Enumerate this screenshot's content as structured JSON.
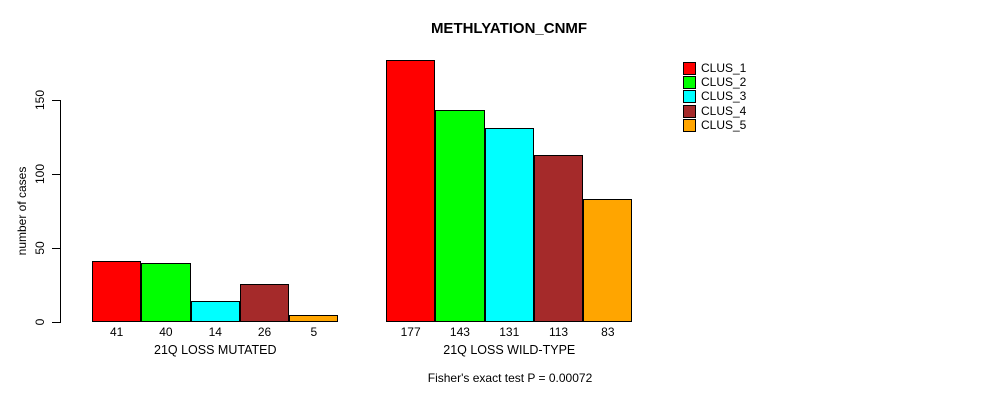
{
  "chart_data": {
    "type": "bar",
    "title": "METHLYATION_CNMF",
    "ylabel": "number of cases",
    "xlabel": "",
    "yticks": [
      0,
      50,
      100,
      150
    ],
    "ylim": [
      0,
      185
    ],
    "grid": false,
    "legend_position": "right",
    "categories": [
      "21Q LOSS MUTATED",
      "21Q LOSS WILD-TYPE"
    ],
    "series": [
      {
        "name": "CLUS_1",
        "color": "#FF0000",
        "values": [
          41,
          177
        ]
      },
      {
        "name": "CLUS_2",
        "color": "#00FF00",
        "values": [
          40,
          143
        ]
      },
      {
        "name": "CLUS_3",
        "color": "#00FFFF",
        "values": [
          14,
          131
        ]
      },
      {
        "name": "CLUS_4",
        "color": "#A52A2A",
        "values": [
          26,
          113
        ]
      },
      {
        "name": "CLUS_5",
        "color": "#FFA500",
        "values": [
          5,
          83
        ]
      }
    ],
    "bar_value_labels": [
      [
        "41",
        "40",
        "14",
        "26",
        "5"
      ],
      [
        "177",
        "143",
        "131",
        "113",
        "83"
      ]
    ],
    "annotation": "Fisher's exact test P = 0.00072"
  }
}
